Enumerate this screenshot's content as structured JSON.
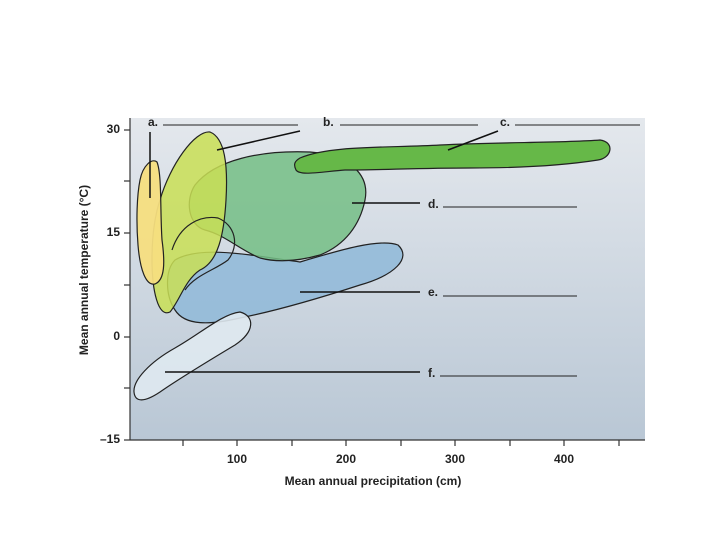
{
  "y_axis": {
    "title": "Mean annual temperature (°C)",
    "ticks": [
      "30",
      "15",
      "0",
      "–15"
    ]
  },
  "x_axis": {
    "title": "Mean annual precipitation (cm)",
    "ticks": [
      "100",
      "200",
      "300",
      "400"
    ]
  },
  "regions": [
    {
      "label": "a."
    },
    {
      "label": "b."
    },
    {
      "label": "c."
    },
    {
      "label": "d."
    },
    {
      "label": "e."
    },
    {
      "label": "f."
    }
  ]
}
